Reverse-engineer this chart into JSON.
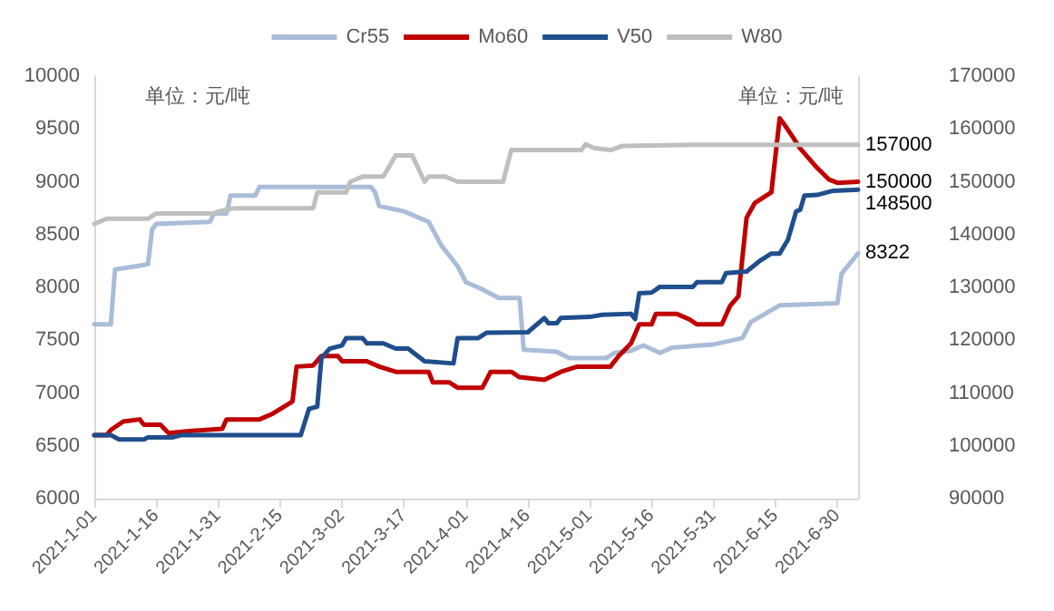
{
  "chart_data": {
    "type": "line",
    "ylabel": "单位：元/吨",
    "y2label": "单位：元/吨",
    "legend": "top",
    "marker": "none",
    "line_style": "solid",
    "grid": false,
    "xlim": [
      "2021-01-01",
      "2021-07-05"
    ],
    "xticks": [
      {
        "value": "2021-01-01",
        "label": "2021-1-01"
      },
      {
        "value": "2021-01-16",
        "label": "2021-1-16"
      },
      {
        "value": "2021-01-31",
        "label": "2021-1-31"
      },
      {
        "value": "2021-02-15",
        "label": "2021-2-15"
      },
      {
        "value": "2021-03-02",
        "label": "2021-3-02"
      },
      {
        "value": "2021-03-17",
        "label": "2021-3-17"
      },
      {
        "value": "2021-04-01",
        "label": "2021-4-01"
      },
      {
        "value": "2021-04-16",
        "label": "2021-4-16"
      },
      {
        "value": "2021-05-01",
        "label": "2021-5-01"
      },
      {
        "value": "2021-05-16",
        "label": "2021-5-16"
      },
      {
        "value": "2021-05-31",
        "label": "2021-5-31"
      },
      {
        "value": "2021-06-15",
        "label": "2021-6-15"
      },
      {
        "value": "2021-06-30",
        "label": "2021-6-30"
      }
    ],
    "ylim": [
      6000,
      10000
    ],
    "yticks": [
      6000,
      6500,
      7000,
      7500,
      8000,
      8500,
      9000,
      9500,
      10000
    ],
    "y2lim": [
      90000,
      170000
    ],
    "y2ticks": [
      90000,
      100000,
      110000,
      120000,
      130000,
      140000,
      150000,
      160000,
      170000
    ],
    "series": [
      {
        "name": "Cr55",
        "color": "#a9bcd8",
        "axis": "y",
        "x": [
          "2021-01-01",
          "2021-01-05",
          "2021-01-06",
          "2021-01-11",
          "2021-01-14",
          "2021-01-15",
          "2021-01-16",
          "2021-01-29",
          "2021-01-30",
          "2021-02-02",
          "2021-02-03",
          "2021-02-09",
          "2021-02-10",
          "2021-03-09",
          "2021-03-10",
          "2021-03-11",
          "2021-03-17",
          "2021-03-23",
          "2021-03-26",
          "2021-03-30",
          "2021-04-01",
          "2021-04-05",
          "2021-04-09",
          "2021-04-14",
          "2021-04-15",
          "2021-04-23",
          "2021-04-26",
          "2021-05-05",
          "2021-05-07",
          "2021-05-11",
          "2021-05-14",
          "2021-05-18",
          "2021-05-21",
          "2021-05-31",
          "2021-06-07",
          "2021-06-09",
          "2021-06-16",
          "2021-06-30",
          "2021-07-01",
          "2021-07-05"
        ],
        "values": [
          7650,
          7650,
          8170,
          8200,
          8220,
          8550,
          8600,
          8620,
          8700,
          8700,
          8870,
          8870,
          8950,
          8950,
          8900,
          8770,
          8720,
          8620,
          8400,
          8200,
          8050,
          7980,
          7900,
          7900,
          7410,
          7390,
          7330,
          7330,
          7380,
          7400,
          7450,
          7380,
          7430,
          7460,
          7520,
          7670,
          7830,
          7850,
          8130,
          8322
        ],
        "value_labels": [
          null,
          null,
          null,
          null,
          null,
          null,
          null,
          null,
          null,
          null,
          null,
          null,
          null,
          null,
          null,
          null,
          null,
          null,
          null,
          null,
          null,
          null,
          null,
          null,
          null,
          null,
          null,
          null,
          null,
          null,
          null,
          null,
          null,
          null,
          null,
          null,
          null,
          null,
          null,
          "8322"
        ]
      },
      {
        "name": "Mo60",
        "color": "#c00000",
        "axis": "y2",
        "x": [
          "2021-01-01",
          "2021-01-04",
          "2021-01-05",
          "2021-01-08",
          "2021-01-12",
          "2021-01-13",
          "2021-01-17",
          "2021-01-19",
          "2021-01-24",
          "2021-02-01",
          "2021-02-02",
          "2021-02-10",
          "2021-02-13",
          "2021-02-18",
          "2021-02-19",
          "2021-02-23",
          "2021-02-25",
          "2021-03-01",
          "2021-03-02",
          "2021-03-08",
          "2021-03-11",
          "2021-03-15",
          "2021-03-23",
          "2021-03-24",
          "2021-03-28",
          "2021-03-30",
          "2021-04-05",
          "2021-04-07",
          "2021-04-12",
          "2021-04-14",
          "2021-04-20",
          "2021-04-24",
          "2021-04-28",
          "2021-05-06",
          "2021-05-08",
          "2021-05-11",
          "2021-05-13",
          "2021-05-16",
          "2021-05-17",
          "2021-05-22",
          "2021-05-25",
          "2021-05-27",
          "2021-06-02",
          "2021-06-04",
          "2021-06-06",
          "2021-06-08",
          "2021-06-10",
          "2021-06-14",
          "2021-06-16",
          "2021-06-17",
          "2021-06-19",
          "2021-06-21",
          "2021-06-23",
          "2021-06-25",
          "2021-06-28",
          "2021-06-30",
          "2021-07-05"
        ],
        "values": [
          102000,
          102000,
          103000,
          104600,
          105000,
          104000,
          104000,
          102400,
          102800,
          103200,
          105000,
          105000,
          106000,
          108400,
          115000,
          115200,
          117000,
          117000,
          116000,
          116000,
          115000,
          114000,
          114000,
          112000,
          112000,
          111000,
          111000,
          114000,
          114000,
          113000,
          112500,
          114000,
          115000,
          115000,
          117000,
          119400,
          123000,
          123000,
          125000,
          125000,
          124000,
          123000,
          123000,
          126500,
          128300,
          143200,
          146000,
          148000,
          162000,
          161000,
          158700,
          156300,
          154500,
          152700,
          150400,
          149800,
          150000
        ],
        "value_labels": [
          null,
          null,
          null,
          null,
          null,
          null,
          null,
          null,
          null,
          null,
          null,
          null,
          null,
          null,
          null,
          null,
          null,
          null,
          null,
          null,
          null,
          null,
          null,
          null,
          null,
          null,
          null,
          null,
          null,
          null,
          null,
          null,
          null,
          null,
          null,
          null,
          null,
          null,
          null,
          null,
          null,
          null,
          null,
          null,
          null,
          null,
          null,
          null,
          null,
          null,
          null,
          null,
          null,
          null,
          null,
          null,
          "150000"
        ]
      },
      {
        "name": "V50",
        "color": "#1f4e8c",
        "axis": "y2",
        "x": [
          "2021-01-01",
          "2021-01-05",
          "2021-01-07",
          "2021-01-13",
          "2021-01-14",
          "2021-01-20",
          "2021-01-22",
          "2021-02-20",
          "2021-02-22",
          "2021-02-24",
          "2021-02-25",
          "2021-02-27",
          "2021-03-02",
          "2021-03-03",
          "2021-03-07",
          "2021-03-08",
          "2021-03-12",
          "2021-03-15",
          "2021-03-18",
          "2021-03-22",
          "2021-03-29",
          "2021-03-30",
          "2021-04-04",
          "2021-04-06",
          "2021-04-16",
          "2021-04-20",
          "2021-04-21",
          "2021-04-23",
          "2021-04-24",
          "2021-05-01",
          "2021-05-04",
          "2021-05-11",
          "2021-05-12",
          "2021-05-13",
          "2021-05-16",
          "2021-05-18",
          "2021-05-26",
          "2021-05-27",
          "2021-06-02",
          "2021-06-03",
          "2021-06-08",
          "2021-06-11",
          "2021-06-14",
          "2021-06-16",
          "2021-06-18",
          "2021-06-20",
          "2021-06-21",
          "2021-06-22",
          "2021-06-25",
          "2021-06-29",
          "2021-07-05"
        ],
        "values": [
          102000,
          102000,
          101200,
          101200,
          101600,
          101600,
          102000,
          102000,
          107000,
          107400,
          116600,
          118400,
          119000,
          120400,
          120400,
          119400,
          119400,
          118400,
          118400,
          116000,
          115600,
          120400,
          120400,
          121400,
          121500,
          124200,
          123200,
          123200,
          124200,
          124400,
          124800,
          125000,
          124000,
          128900,
          129000,
          130100,
          130100,
          131000,
          131000,
          132700,
          133000,
          134900,
          136400,
          136400,
          139000,
          144400,
          144700,
          147400,
          147500,
          148300,
          148500
        ],
        "value_labels": [
          null,
          null,
          null,
          null,
          null,
          null,
          null,
          null,
          null,
          null,
          null,
          null,
          null,
          null,
          null,
          null,
          null,
          null,
          null,
          null,
          null,
          null,
          null,
          null,
          null,
          null,
          null,
          null,
          null,
          null,
          null,
          null,
          null,
          null,
          null,
          null,
          null,
          null,
          null,
          null,
          null,
          null,
          null,
          null,
          null,
          null,
          null,
          null,
          null,
          null,
          "148500"
        ]
      },
      {
        "name": "W80",
        "color": "#bfbfbf",
        "axis": "y2",
        "x": [
          "2021-01-01",
          "2021-01-04",
          "2021-01-14",
          "2021-01-16",
          "2021-01-30",
          "2021-01-31",
          "2021-02-04",
          "2021-02-23",
          "2021-02-24",
          "2021-03-03",
          "2021-03-04",
          "2021-03-07",
          "2021-03-12",
          "2021-03-15",
          "2021-03-19",
          "2021-03-22",
          "2021-03-23",
          "2021-03-27",
          "2021-03-30",
          "2021-04-10",
          "2021-04-12",
          "2021-04-29",
          "2021-04-30",
          "2021-05-02",
          "2021-05-06",
          "2021-05-09",
          "2021-05-28",
          "2021-07-05"
        ],
        "values": [
          142000,
          143000,
          143000,
          144000,
          144000,
          144400,
          145000,
          145000,
          148000,
          148000,
          150000,
          151000,
          151000,
          155000,
          155000,
          150000,
          151000,
          151000,
          150000,
          150000,
          156000,
          156000,
          157100,
          156400,
          156000,
          156800,
          157000,
          157000
        ],
        "value_labels": [
          null,
          null,
          null,
          null,
          null,
          null,
          null,
          null,
          null,
          null,
          null,
          null,
          null,
          null,
          null,
          null,
          null,
          null,
          null,
          null,
          null,
          null,
          null,
          null,
          null,
          null,
          null,
          "157000"
        ]
      }
    ]
  }
}
